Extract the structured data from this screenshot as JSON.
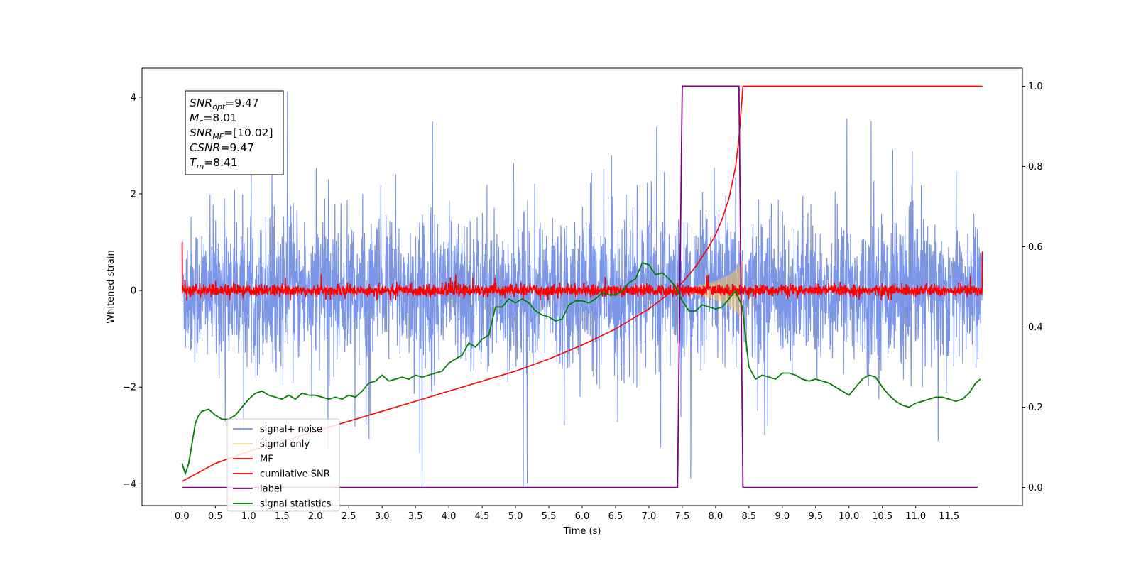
{
  "chart_data": {
    "type": "line",
    "xlabel": "Time (s)",
    "ylabel_left": "Whitened strain",
    "ylabel_right": "",
    "xlim": [
      -0.6,
      12.6
    ],
    "ylim_left": [
      -4.45,
      4.6
    ],
    "ylim_right": [
      -0.045,
      1.045
    ],
    "x_ticks": [
      "0.0",
      "0.5",
      "1.0",
      "1.5",
      "2.0",
      "2.5",
      "3.0",
      "3.5",
      "4.0",
      "4.5",
      "5.0",
      "5.5",
      "6.0",
      "6.5",
      "7.0",
      "7.5",
      "8.0",
      "8.5",
      "9.0",
      "9.5",
      "10.0",
      "10.5",
      "11.0",
      "11.5"
    ],
    "y_ticks_left": [
      "-4",
      "-2",
      "0",
      "2",
      "4"
    ],
    "y_ticks_right": [
      "0.0",
      "0.2",
      "0.4",
      "0.6",
      "0.8",
      "1.0"
    ],
    "grid": false,
    "legend_position": "lower-left",
    "annotation": {
      "lines": [
        {
          "var": "SNR",
          "sub": "opt",
          "rest": "=9.47"
        },
        {
          "var": "M",
          "sub": "c",
          "rest": "=8.01"
        },
        {
          "var": "SNR",
          "sub": "MF",
          "rest": "=[10.02]"
        },
        {
          "var": "CSNR",
          "sub": "",
          "rest": "=9.47"
        },
        {
          "var": "T",
          "sub": "m",
          "rest": "=8.41"
        }
      ]
    },
    "series": [
      {
        "name": "signal+ noise",
        "axis": "left",
        "color": "#7b96e8",
        "kind": "noise",
        "x_range": [
          0.0,
          12.0
        ],
        "typical_range": [
          -1.8,
          1.8
        ],
        "peak_range": [
          -4.05,
          4.18
        ]
      },
      {
        "name": "signal only",
        "axis": "left",
        "color": "#f5c45a",
        "kind": "chirp",
        "x_range": [
          7.5,
          8.41
        ],
        "envelope": [
          [
            7.5,
            0.02
          ],
          [
            7.8,
            0.12
          ],
          [
            8.0,
            0.2
          ],
          [
            8.2,
            0.32
          ],
          [
            8.35,
            0.5
          ],
          [
            8.41,
            0.7
          ]
        ]
      },
      {
        "name": "MF",
        "axis": "left",
        "color": "#ff0000",
        "kind": "noise",
        "x_range": [
          0.0,
          12.0
        ],
        "typical_range": [
          -0.12,
          0.12
        ],
        "peak_range": [
          -0.2,
          0.35
        ],
        "edge_values": [
          1.0,
          0.8
        ]
      },
      {
        "name": "cumilative SNR",
        "axis": "right",
        "color": "#ff0000",
        "x": [
          0.0,
          0.5,
          1.0,
          1.5,
          2.0,
          2.5,
          3.0,
          3.5,
          4.0,
          4.5,
          5.0,
          5.5,
          6.0,
          6.5,
          7.0,
          7.2,
          7.5,
          7.7,
          7.9,
          8.0,
          8.1,
          8.2,
          8.3,
          8.35,
          8.41,
          12.0
        ],
        "values": [
          0.015,
          0.06,
          0.09,
          0.115,
          0.14,
          0.165,
          0.19,
          0.215,
          0.24,
          0.265,
          0.29,
          0.32,
          0.355,
          0.395,
          0.445,
          0.47,
          0.51,
          0.55,
          0.6,
          0.63,
          0.67,
          0.72,
          0.8,
          0.87,
          1.0,
          1.0
        ]
      },
      {
        "name": "label",
        "axis": "right",
        "color": "#800080",
        "x": [
          0.0,
          7.43,
          7.5,
          8.35,
          8.41,
          11.93
        ],
        "values": [
          0.0,
          0.0,
          1.0,
          1.0,
          0.0,
          0.0
        ]
      },
      {
        "name": "signal statistics",
        "axis": "right",
        "color": "#008000",
        "x": [
          0.0,
          0.05,
          0.1,
          0.15,
          0.2,
          0.25,
          0.3,
          0.4,
          0.5,
          0.6,
          0.7,
          0.8,
          0.9,
          1.0,
          1.1,
          1.2,
          1.3,
          1.4,
          1.5,
          1.6,
          1.7,
          1.8,
          1.9,
          2.0,
          2.1,
          2.2,
          2.3,
          2.4,
          2.5,
          2.6,
          2.7,
          2.8,
          2.9,
          3.0,
          3.1,
          3.2,
          3.3,
          3.4,
          3.5,
          3.6,
          3.7,
          3.8,
          3.9,
          4.0,
          4.1,
          4.2,
          4.3,
          4.4,
          4.5,
          4.6,
          4.7,
          4.8,
          4.9,
          5.0,
          5.1,
          5.2,
          5.3,
          5.4,
          5.5,
          5.6,
          5.7,
          5.8,
          5.9,
          6.0,
          6.1,
          6.2,
          6.3,
          6.4,
          6.5,
          6.6,
          6.7,
          6.8,
          6.9,
          7.0,
          7.1,
          7.2,
          7.3,
          7.4,
          7.5,
          7.6,
          7.7,
          7.8,
          7.9,
          8.0,
          8.1,
          8.2,
          8.3,
          8.4,
          8.5,
          8.6,
          8.7,
          8.8,
          8.9,
          9.0,
          9.1,
          9.2,
          9.3,
          9.4,
          9.5,
          9.6,
          9.7,
          9.8,
          9.9,
          10.0,
          10.1,
          10.2,
          10.3,
          10.4,
          10.5,
          10.6,
          10.7,
          10.8,
          10.9,
          11.0,
          11.1,
          11.2,
          11.3,
          11.4,
          11.5,
          11.6,
          11.7,
          11.8,
          11.9,
          11.97
        ],
        "values": [
          0.06,
          0.035,
          0.06,
          0.11,
          0.16,
          0.18,
          0.19,
          0.195,
          0.18,
          0.17,
          0.17,
          0.18,
          0.2,
          0.22,
          0.235,
          0.24,
          0.23,
          0.225,
          0.22,
          0.23,
          0.22,
          0.235,
          0.23,
          0.23,
          0.225,
          0.22,
          0.225,
          0.22,
          0.23,
          0.225,
          0.24,
          0.26,
          0.265,
          0.28,
          0.265,
          0.27,
          0.275,
          0.27,
          0.28,
          0.275,
          0.28,
          0.285,
          0.29,
          0.31,
          0.32,
          0.33,
          0.36,
          0.35,
          0.37,
          0.38,
          0.45,
          0.45,
          0.47,
          0.46,
          0.47,
          0.46,
          0.44,
          0.43,
          0.425,
          0.415,
          0.42,
          0.455,
          0.465,
          0.465,
          0.46,
          0.47,
          0.485,
          0.48,
          0.48,
          0.49,
          0.51,
          0.52,
          0.56,
          0.555,
          0.53,
          0.535,
          0.52,
          0.5,
          0.465,
          0.44,
          0.44,
          0.455,
          0.45,
          0.445,
          0.45,
          0.47,
          0.49,
          0.45,
          0.3,
          0.27,
          0.28,
          0.275,
          0.27,
          0.285,
          0.285,
          0.28,
          0.27,
          0.265,
          0.27,
          0.265,
          0.26,
          0.25,
          0.24,
          0.23,
          0.25,
          0.27,
          0.28,
          0.275,
          0.25,
          0.23,
          0.215,
          0.205,
          0.2,
          0.21,
          0.215,
          0.22,
          0.225,
          0.225,
          0.22,
          0.215,
          0.22,
          0.235,
          0.26,
          0.27
        ]
      }
    ]
  }
}
